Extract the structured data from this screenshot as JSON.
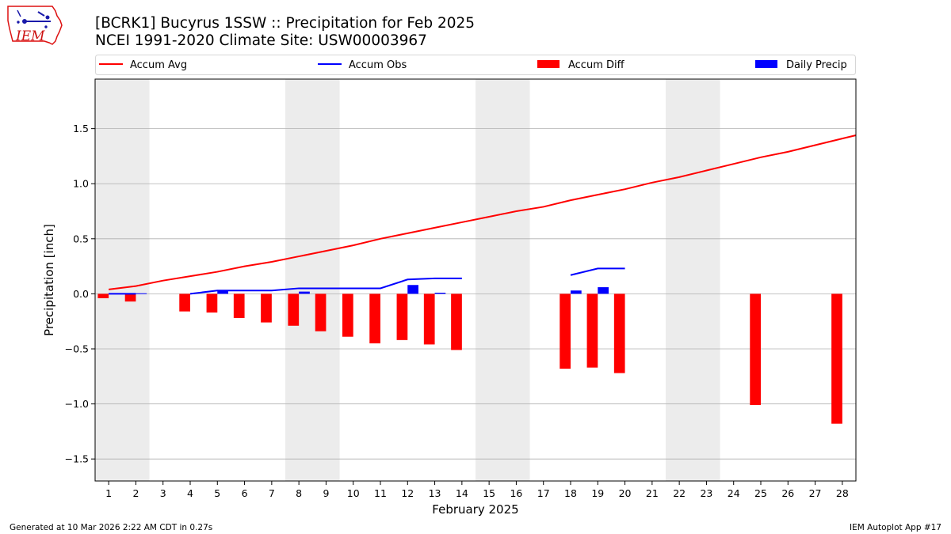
{
  "logo": {
    "text": "IEM"
  },
  "title": {
    "line1": "[BCRK1] Bucyrus 1SSW :: Precipitation for Feb 2025",
    "line2": "NCEI 1991-2020 Climate Site: USW00003967"
  },
  "footer": {
    "left": "Generated at 10 Mar 2026 2:22 AM CDT in 0.27s",
    "right": "IEM Autoplot App #17"
  },
  "chart_data": {
    "type": "bar",
    "xlabel": "February 2025",
    "ylabel": "Precipitation [inch]",
    "xlim": [
      0.5,
      28.5
    ],
    "ylim": [
      -1.7,
      1.95
    ],
    "yticks": [
      -1.5,
      -1.0,
      -0.5,
      0.0,
      0.5,
      1.0,
      1.5
    ],
    "ytick_labels": [
      "−1.5",
      "−1.0",
      "−0.5",
      "0.0",
      "0.5",
      "1.0",
      "1.5"
    ],
    "xticks": [
      1,
      2,
      3,
      4,
      5,
      6,
      7,
      8,
      9,
      10,
      11,
      12,
      13,
      14,
      15,
      16,
      17,
      18,
      19,
      20,
      21,
      22,
      23,
      24,
      25,
      26,
      27,
      28
    ],
    "grid": "horizontal",
    "legend_position": "top",
    "weekend_shading": [
      [
        0.5,
        2.5
      ],
      [
        7.5,
        9.5
      ],
      [
        14.5,
        16.5
      ],
      [
        21.5,
        23.5
      ]
    ],
    "colors": {
      "avg": "#ff0000",
      "obs": "#0000ff",
      "diff": "#ff0000",
      "daily": "#0000ff",
      "shade": "#ececec",
      "grid": "#b0b0b0"
    },
    "legend": [
      {
        "key": "avg",
        "label": "Accum Avg",
        "kind": "line"
      },
      {
        "key": "obs",
        "label": "Accum Obs",
        "kind": "line"
      },
      {
        "key": "diff",
        "label": "Accum Diff",
        "kind": "bar"
      },
      {
        "key": "daily",
        "label": "Daily Precip",
        "kind": "bar"
      }
    ],
    "series": [
      {
        "name": "Accum Avg",
        "type": "line",
        "x": [
          1,
          2,
          3,
          4,
          5,
          6,
          7,
          8,
          9,
          10,
          11,
          12,
          13,
          14,
          15,
          16,
          17,
          18,
          19,
          20,
          21,
          22,
          23,
          24,
          25,
          26,
          27,
          28,
          28.5
        ],
        "values": [
          0.04,
          0.07,
          0.12,
          0.16,
          0.2,
          0.25,
          0.29,
          0.34,
          0.39,
          0.44,
          0.5,
          0.55,
          0.6,
          0.65,
          0.7,
          0.75,
          0.79,
          0.85,
          0.9,
          0.95,
          1.01,
          1.06,
          1.12,
          1.18,
          1.24,
          1.29,
          1.35,
          1.41,
          1.44
        ]
      },
      {
        "name": "Accum Obs",
        "type": "line",
        "segments": [
          {
            "x": [
              1,
              2
            ],
            "values": [
              0.0,
              0.0
            ]
          },
          {
            "x": [
              4,
              5,
              6,
              7,
              8,
              9,
              10,
              11,
              12,
              13,
              14
            ],
            "values": [
              0.0,
              0.03,
              0.03,
              0.03,
              0.05,
              0.05,
              0.05,
              0.05,
              0.13,
              0.14,
              0.14
            ]
          },
          {
            "x": [
              18,
              19,
              20
            ],
            "values": [
              0.17,
              0.23,
              0.23
            ]
          }
        ]
      },
      {
        "name": "Accum Diff",
        "type": "bar",
        "x": [
          1,
          2,
          4,
          5,
          6,
          7,
          8,
          9,
          10,
          11,
          12,
          13,
          14,
          18,
          19,
          20,
          25,
          28
        ],
        "values": [
          -0.04,
          -0.07,
          -0.16,
          -0.17,
          -0.22,
          -0.26,
          -0.29,
          -0.34,
          -0.39,
          -0.45,
          -0.42,
          -0.46,
          -0.51,
          -0.68,
          -0.67,
          -0.72,
          -1.01,
          -1.18
        ]
      },
      {
        "name": "Daily Precip",
        "type": "bar",
        "x": [
          1,
          2,
          5,
          8,
          12,
          13,
          18,
          19
        ],
        "values": [
          0.005,
          0.005,
          0.03,
          0.02,
          0.08,
          0.01,
          0.03,
          0.06
        ]
      }
    ]
  }
}
